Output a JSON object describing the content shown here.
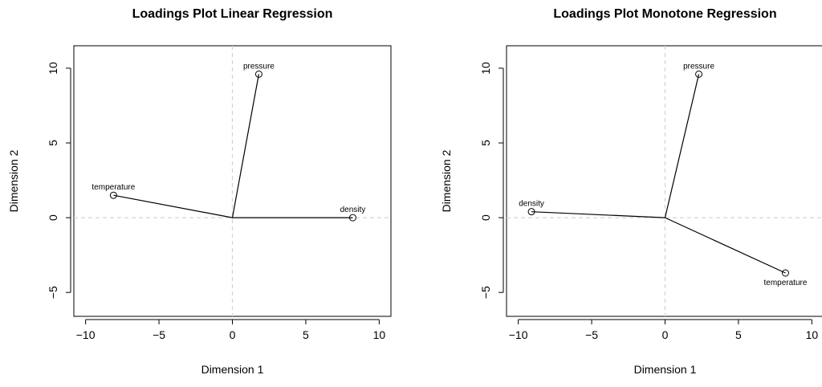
{
  "chart_data": [
    {
      "type": "scatter",
      "title": "Loadings Plot Linear Regression",
      "xlabel": "Dimension 1",
      "ylabel": "Dimension 2",
      "xlim": [
        -10,
        10
      ],
      "ylim": [
        -5,
        10
      ],
      "xticks": [
        -10,
        -5,
        0,
        5,
        10
      ],
      "yticks": [
        -5,
        0,
        5,
        10
      ],
      "xtick_labels": [
        "−10",
        "−5",
        "0",
        "5",
        "10"
      ],
      "ytick_labels": [
        "−5",
        "0",
        "5",
        "10"
      ],
      "grid": false,
      "reference_lines": [
        {
          "axis": "x",
          "value": 0
        },
        {
          "axis": "y",
          "value": 0
        }
      ],
      "points": [
        {
          "label": "pressure",
          "x": 1.8,
          "y": 9.6,
          "label_position": "above"
        },
        {
          "label": "temperature",
          "x": -8.1,
          "y": 1.5,
          "label_position": "above"
        },
        {
          "label": "density",
          "x": 8.2,
          "y": 0.0,
          "label_position": "above"
        }
      ],
      "colors": {
        "marks": "#000000",
        "reference": "#d3d3d3"
      }
    },
    {
      "type": "scatter",
      "title": "Loadings Plot Monotone Regression",
      "xlabel": "Dimension 1",
      "ylabel": "Dimension 2",
      "xlim": [
        -10,
        10
      ],
      "ylim": [
        -5,
        10
      ],
      "xticks": [
        -10,
        -5,
        0,
        5,
        10
      ],
      "yticks": [
        -5,
        0,
        5,
        10
      ],
      "xtick_labels": [
        "−10",
        "−5",
        "0",
        "5",
        "10"
      ],
      "ytick_labels": [
        "−5",
        "0",
        "5",
        "10"
      ],
      "grid": false,
      "reference_lines": [
        {
          "axis": "x",
          "value": 0
        },
        {
          "axis": "y",
          "value": 0
        }
      ],
      "points": [
        {
          "label": "pressure",
          "x": 2.3,
          "y": 9.6,
          "label_position": "above"
        },
        {
          "label": "density",
          "x": -9.1,
          "y": 0.4,
          "label_position": "above"
        },
        {
          "label": "temperature",
          "x": 8.2,
          "y": -3.7,
          "label_position": "below"
        }
      ],
      "colors": {
        "marks": "#000000",
        "reference": "#d3d3d3"
      }
    }
  ]
}
